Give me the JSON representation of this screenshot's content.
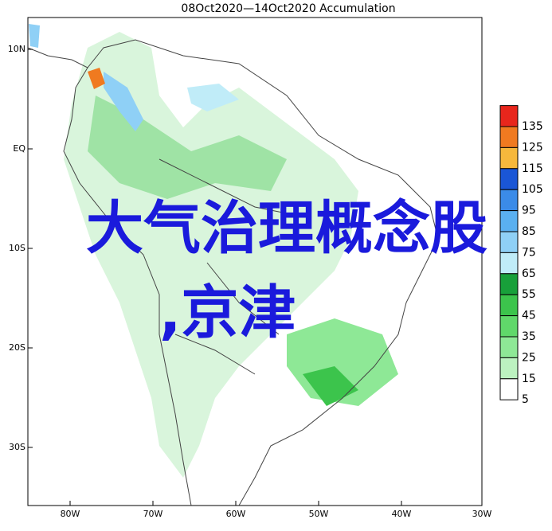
{
  "title": "08Oct2020—14Oct2020 Accumulation",
  "lat_labels": [
    "10N",
    "EQ",
    "10S",
    "20S",
    "30S"
  ],
  "lon_labels": [
    "80W",
    "70W",
    "60W",
    "50W",
    "40W",
    "30W"
  ],
  "colorbar": {
    "labels": [
      135,
      125,
      115,
      105,
      95,
      85,
      75,
      65,
      55,
      45,
      35,
      25,
      15,
      5
    ],
    "colors": [
      "#e8261c",
      "#f07a20",
      "#f6b83c",
      "#1a56d6",
      "#3b8be8",
      "#5ab0f0",
      "#8fd0f6",
      "#c0ecf8",
      "#18a03a",
      "#3cc44c",
      "#60d86a",
      "#8ee896",
      "#bcf2c0",
      "#ffffff"
    ]
  },
  "overlay": [
    "大气治理概念股",
    ",京津"
  ]
}
